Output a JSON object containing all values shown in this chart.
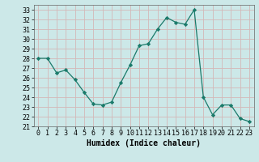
{
  "x": [
    0,
    1,
    2,
    3,
    4,
    5,
    6,
    7,
    8,
    9,
    10,
    11,
    12,
    13,
    14,
    15,
    16,
    17,
    18,
    19,
    20,
    21,
    22,
    23
  ],
  "y": [
    28,
    28,
    26.5,
    26.8,
    25.8,
    24.5,
    23.3,
    23.2,
    23.5,
    25.5,
    27.3,
    29.3,
    29.5,
    31.0,
    32.2,
    31.7,
    31.5,
    33.0,
    24.0,
    22.2,
    23.2,
    23.2,
    21.8,
    21.5
  ],
  "xlabel": "Humidex (Indice chaleur)",
  "xlim": [
    -0.5,
    23.5
  ],
  "ylim": [
    21,
    33.5
  ],
  "yticks": [
    21,
    22,
    23,
    24,
    25,
    26,
    27,
    28,
    29,
    30,
    31,
    32,
    33
  ],
  "xticks": [
    0,
    1,
    2,
    3,
    4,
    5,
    6,
    7,
    8,
    9,
    10,
    11,
    12,
    13,
    14,
    15,
    16,
    17,
    18,
    19,
    20,
    21,
    22,
    23
  ],
  "line_color": "#1a7a6a",
  "marker_color": "#1a7a6a",
  "bg_color": "#cce8e8",
  "grid_color": "#d4b8b8",
  "xlabel_fontsize": 7,
  "tick_fontsize": 6
}
